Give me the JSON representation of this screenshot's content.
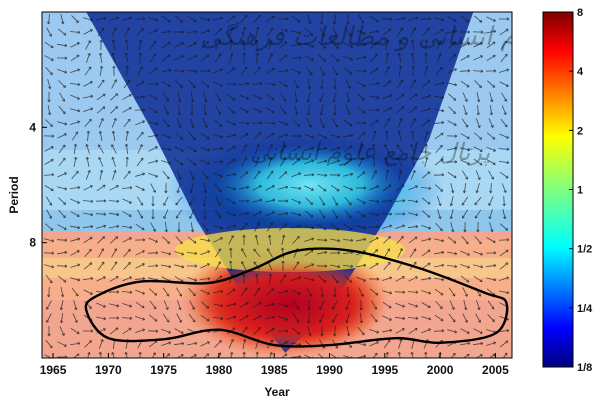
{
  "chart_data": {
    "type": "heatmap",
    "title": "",
    "xlabel": "Year",
    "ylabel": "Period",
    "xlim": [
      1964,
      2006.5
    ],
    "x_ticks": [
      "1965",
      "1970",
      "1975",
      "1980",
      "1985",
      "1990",
      "1995",
      "2000",
      "2005"
    ],
    "y_scale": "log2",
    "ylim": [
      2,
      16
    ],
    "y_ticks": [
      "4",
      "8"
    ],
    "colorbar": {
      "scale": "log2",
      "range": [
        0.125,
        8
      ],
      "ticks": [
        "8",
        "4",
        "2",
        "1",
        "1/2",
        "1/4",
        "1/8"
      ],
      "colormap": "jet"
    },
    "power_regions": [
      {
        "label": "high-power band (red)",
        "x": [
          1980,
          1993
        ],
        "period": [
          9,
          15
        ],
        "value": 8
      },
      {
        "label": "medium-high band (orange/yellow)",
        "x": [
          1966,
          2006
        ],
        "period": [
          7,
          16
        ],
        "value": 2
      },
      {
        "label": "moderate band (cyan)",
        "x": [
          1978,
          1995
        ],
        "period": [
          4,
          7
        ],
        "value": 0.5
      },
      {
        "label": "background (blue)",
        "x": [
          1964,
          2006.5
        ],
        "period": [
          2,
          16
        ],
        "value": 0.125
      }
    ],
    "significance_contour": {
      "label": "5% significance level",
      "points": [
        [
          1968,
          12
        ],
        [
          1970,
          14.2
        ],
        [
          1975,
          14.3
        ],
        [
          1980,
          13.5
        ],
        [
          1985,
          14.8
        ],
        [
          1990,
          14.8
        ],
        [
          1996,
          14.2
        ],
        [
          2000,
          14.6
        ],
        [
          2005,
          13.8
        ],
        [
          2006,
          11.5
        ],
        [
          2004,
          10.8
        ],
        [
          1998,
          9.3
        ],
        [
          1992,
          8.4
        ],
        [
          1987,
          8.4
        ],
        [
          1983,
          9.4
        ],
        [
          1979,
          10.2
        ],
        [
          1973,
          10.1
        ],
        [
          1969,
          11.0
        ]
      ]
    },
    "cone_of_influence": {
      "points": [
        [
          1968,
          2
        ],
        [
          1974,
          4.1
        ],
        [
          1978,
          7
        ],
        [
          1983,
          12
        ],
        [
          1986,
          15.5
        ],
        [
          1990,
          12
        ],
        [
          1995,
          7
        ],
        [
          1999,
          4.3
        ],
        [
          2003,
          2
        ]
      ]
    },
    "phase_arrows": "shown",
    "colors": {
      "red": "#b5001f",
      "orange": "#f7a01a",
      "yellow": "#f1e23a",
      "cyan": "#35d4e8",
      "blue": "#001d8a",
      "contour": "#000000"
    }
  },
  "watermark": {
    "line1": "پژوهشگاه علوم انسانی و مطالعات فرهنگی",
    "line2": "پرتال جامع علوم انسانی"
  }
}
